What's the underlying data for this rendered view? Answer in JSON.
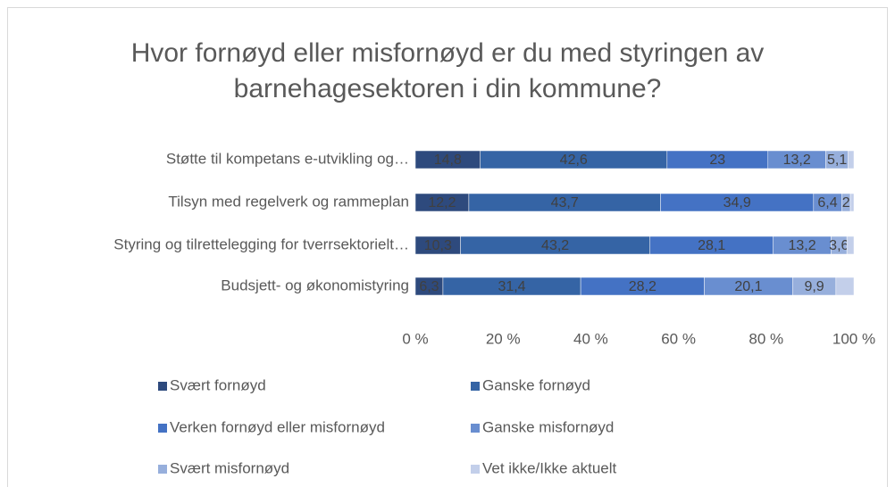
{
  "chart_data": {
    "type": "stacked_bar_horizontal",
    "title": "Hvor fornøyd eller misfornøyd er du med styringen av barnehagesektoren i din kommune?",
    "categories": [
      "Støtte til kompetans e-utvikling og…",
      "Tilsyn med regelverk og rammeplan",
      "Styring og tilrettelegging for tverrsektorielt…",
      "Budsjett- og økonomistyring"
    ],
    "series": [
      {
        "name": "Svært fornøyd",
        "color": "#2e4a7d",
        "values": [
          14.8,
          12.2,
          10.3,
          6.3
        ],
        "value_labels": [
          "14,8",
          "12,2",
          "10,3",
          "6,3"
        ]
      },
      {
        "name": "Ganske fornøyd",
        "color": "#3564a5",
        "values": [
          42.6,
          43.7,
          43.2,
          31.4
        ],
        "value_labels": [
          "42,6",
          "43,7",
          "43,2",
          "31,4"
        ]
      },
      {
        "name": "Verken fornøyd eller misfornøyd",
        "color": "#4472c4",
        "values": [
          23,
          34.9,
          28.1,
          28.2
        ],
        "value_labels": [
          "23",
          "34,9",
          "28,1",
          "28,2"
        ]
      },
      {
        "name": "Ganske misfornøyd",
        "color": "#698ed0",
        "values": [
          13.2,
          6.4,
          13.2,
          20.1
        ],
        "value_labels": [
          "13,2",
          "6,4",
          "13,2",
          "20,1"
        ]
      },
      {
        "name": "Svært misfornøyd",
        "color": "#97afdc",
        "values": [
          5.1,
          2,
          3.6,
          9.9
        ],
        "value_labels": [
          "5,1",
          "2",
          "3,6",
          "9,9"
        ]
      },
      {
        "name": "Vet ikke/Ikke aktuelt",
        "color": "#c3cfea",
        "values": [
          1.3,
          0.8,
          1.6,
          4.1
        ],
        "value_labels": [
          null,
          null,
          null,
          null
        ]
      }
    ],
    "xlim": [
      0,
      100
    ],
    "xticks": [
      {
        "value": 0,
        "label": "0 %"
      },
      {
        "value": 20,
        "label": "20 %"
      },
      {
        "value": 40,
        "label": "40 %"
      },
      {
        "value": 60,
        "label": "60 %"
      },
      {
        "value": 80,
        "label": "80 %"
      },
      {
        "value": 100,
        "label": "100 %"
      }
    ],
    "legend": "bottom"
  }
}
